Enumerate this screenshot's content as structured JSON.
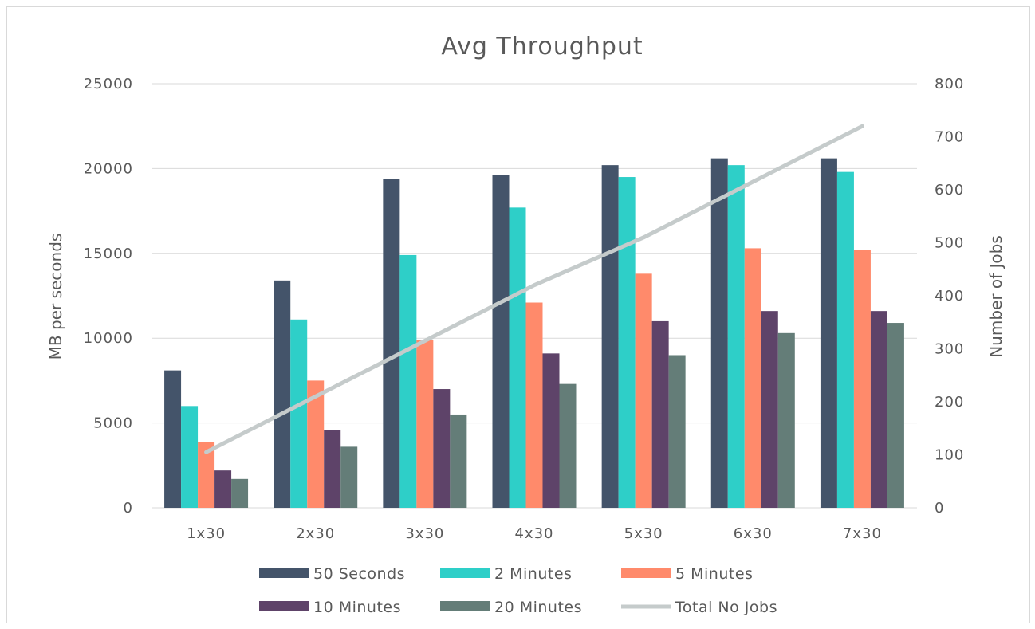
{
  "chart_data": {
    "type": "bar",
    "title": "Avg Throughput",
    "categories": [
      "1x30",
      "2x30",
      "3x30",
      "4x30",
      "5x30",
      "6x30",
      "7x30"
    ],
    "ylabel": "MB per seconds",
    "y2label": "Number of Jobs",
    "ylim": [
      0,
      25000
    ],
    "y2lim": [
      0,
      800
    ],
    "yticks": [
      "0",
      "5000",
      "10000",
      "15000",
      "20000",
      "25000"
    ],
    "y2ticks": [
      "0",
      "100",
      "200",
      "300",
      "400",
      "500",
      "600",
      "700",
      "800"
    ],
    "grid": true,
    "legend_position": "bottom",
    "series": [
      {
        "name": "50 Seconds",
        "color": "#44546a",
        "values": [
          8100,
          13400,
          19400,
          19600,
          20200,
          20600,
          20600
        ]
      },
      {
        "name": "2 Minutes",
        "color": "#2ecfc8",
        "values": [
          6000,
          11100,
          14900,
          17700,
          19500,
          20200,
          19800
        ]
      },
      {
        "name": "5 Minutes",
        "color": "#ff8a6b",
        "values": [
          3900,
          7500,
          9900,
          12100,
          13800,
          15300,
          15200
        ]
      },
      {
        "name": "10 Minutes",
        "color": "#5e4369",
        "values": [
          2200,
          4600,
          7000,
          9100,
          11000,
          11600,
          11600
        ]
      },
      {
        "name": "20 Minutes",
        "color": "#647d78",
        "values": [
          1700,
          3600,
          5500,
          7300,
          9000,
          10300,
          10900
        ]
      }
    ],
    "line_series": {
      "name": "Total No Jobs",
      "color": "#c5cbcb",
      "values": [
        105,
        210,
        315,
        420,
        510,
        615,
        720
      ]
    }
  }
}
